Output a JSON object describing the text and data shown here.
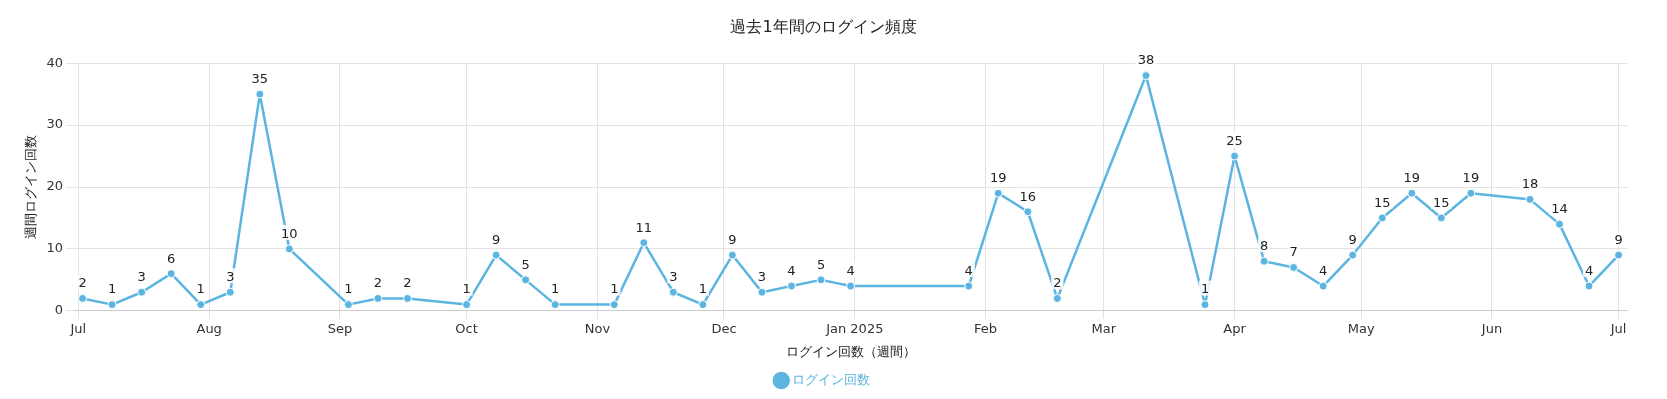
{
  "chart_data": {
    "type": "line",
    "title": "過去1年間のログイン頻度",
    "xlabel": "ログイン回数（週間）",
    "ylabel": "週間ログイン回数",
    "x": [
      "2024-07-02",
      "2024-07-09",
      "2024-07-16",
      "2024-07-23",
      "2024-07-30",
      "2024-08-06",
      "2024-08-13",
      "2024-08-20",
      "2024-09-03",
      "2024-09-10",
      "2024-09-17",
      "2024-10-01",
      "2024-10-08",
      "2024-10-15",
      "2024-10-22",
      "2024-11-05",
      "2024-11-12",
      "2024-11-19",
      "2024-11-26",
      "2024-12-03",
      "2024-12-10",
      "2024-12-17",
      "2024-12-24",
      "2024-12-31",
      "2025-01-28",
      "2025-02-04",
      "2025-02-11",
      "2025-02-18",
      "2025-03-11",
      "2025-03-25",
      "2025-04-01",
      "2025-04-08",
      "2025-04-15",
      "2025-04-22",
      "2025-04-29",
      "2025-05-06",
      "2025-05-13",
      "2025-05-20",
      "2025-05-27",
      "2025-06-10",
      "2025-06-17",
      "2025-06-24",
      "2025-07-01"
    ],
    "series": [
      {
        "name": "ログイン回数",
        "color": "#5bb5e0",
        "values": [
          2,
          1,
          3,
          6,
          1,
          3,
          35,
          10,
          1,
          2,
          2,
          1,
          9,
          5,
          1,
          1,
          11,
          3,
          1,
          9,
          3,
          4,
          5,
          4,
          4,
          19,
          16,
          2,
          38,
          1,
          25,
          8,
          7,
          4,
          9,
          15,
          19,
          15,
          19,
          18,
          14,
          4,
          9
        ]
      }
    ],
    "xlim": [
      "2024-06-30",
      "2025-07-03"
    ],
    "xticks": [
      {
        "value": "2024-07-01",
        "label": "Jul"
      },
      {
        "value": "2024-08-01",
        "label": "Aug"
      },
      {
        "value": "2024-09-01",
        "label": "Sep"
      },
      {
        "value": "2024-10-01",
        "label": "Oct"
      },
      {
        "value": "2024-11-01",
        "label": "Nov"
      },
      {
        "value": "2024-12-01",
        "label": "Dec"
      },
      {
        "value": "2025-01-01",
        "label": "Jan 2025"
      },
      {
        "value": "2025-02-01",
        "label": "Feb"
      },
      {
        "value": "2025-03-01",
        "label": "Mar"
      },
      {
        "value": "2025-04-01",
        "label": "Apr"
      },
      {
        "value": "2025-05-01",
        "label": "May"
      },
      {
        "value": "2025-06-01",
        "label": "Jun"
      },
      {
        "value": "2025-07-01",
        "label": "Jul"
      }
    ],
    "ylim": [
      0,
      40
    ],
    "yticks": [
      0,
      10,
      20,
      30,
      40
    ],
    "data_labels": true,
    "grid": true,
    "legend": "bottom",
    "marker": "circle",
    "line_style": "solid"
  }
}
